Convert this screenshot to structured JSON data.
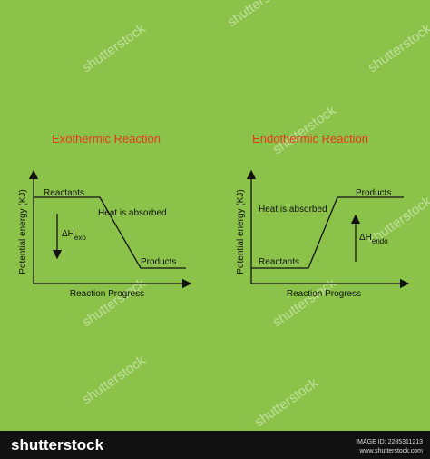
{
  "diagrams": [
    {
      "title": "Exothermic Reaction",
      "y_axis_label": "Potential energy (KJ)",
      "x_axis_label": "Reaction Progress",
      "reactants_label": "Reactants",
      "products_label": "Products",
      "heat_label": "Heat is absorbed",
      "delta_symbol": "ΔH",
      "delta_subscript": "exo"
    },
    {
      "title": "Endothermic Reaction",
      "y_axis_label": "Potential energy (KJ)",
      "x_axis_label": "Reaction Progress",
      "reactants_label": "Reactants",
      "products_label": "Products",
      "heat_label": "Heat is absorbed",
      "delta_symbol": "ΔH",
      "delta_subscript": "endo"
    }
  ],
  "watermark": "shutterstock",
  "footer": {
    "brand": "shutterstock",
    "image_id": "IMAGE ID: 2285311213",
    "site": "www.shutterstock.com"
  }
}
